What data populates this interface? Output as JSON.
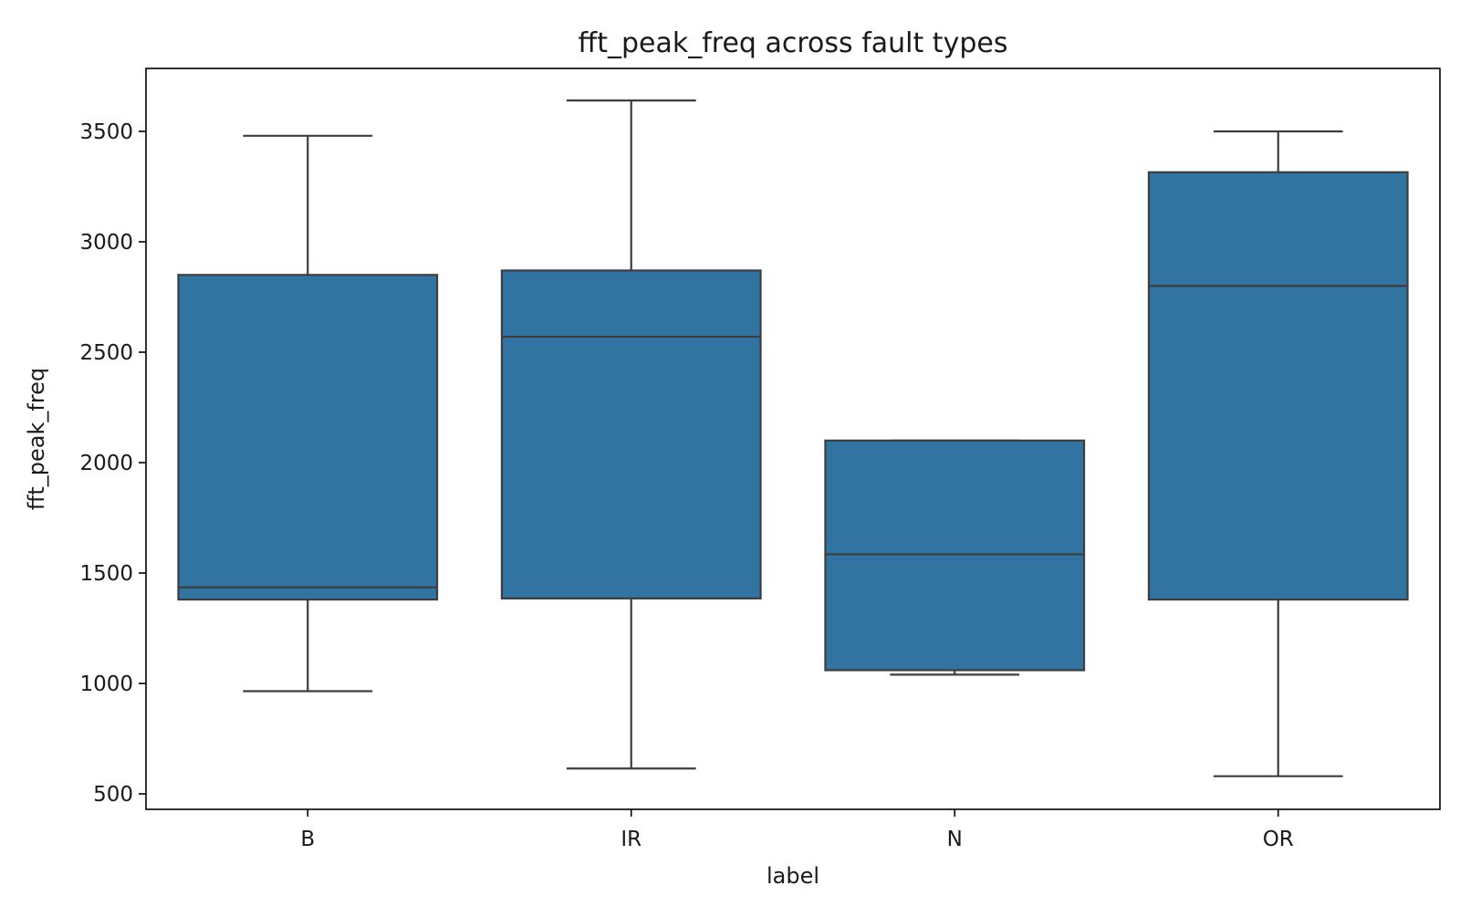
{
  "chart_data": {
    "type": "box",
    "title": "fft_peak_freq across fault types",
    "xlabel": "label",
    "ylabel": "fft_peak_freq",
    "categories": [
      "B",
      "IR",
      "N",
      "OR"
    ],
    "boxes": [
      {
        "category": "B",
        "whisker_low": 965,
        "q1": 1380,
        "median": 1435,
        "q3": 2850,
        "whisker_high": 3480
      },
      {
        "category": "IR",
        "whisker_low": 615,
        "q1": 1385,
        "median": 2570,
        "q3": 2870,
        "whisker_high": 3640
      },
      {
        "category": "N",
        "whisker_low": 1040,
        "q1": 1060,
        "median": 1585,
        "q3": 2100,
        "whisker_high": 2100
      },
      {
        "category": "OR",
        "whisker_low": 580,
        "q1": 1380,
        "median": 2800,
        "q3": 3315,
        "whisker_high": 3500
      }
    ],
    "ylim": [
      430,
      3785
    ],
    "yticks": [
      "500",
      "1000",
      "1500",
      "2000",
      "2500",
      "3000",
      "3500"
    ],
    "grid": false,
    "colors": {
      "box_fill": "#3274a1",
      "line": "#3d3d3d",
      "axis": "#000000"
    }
  }
}
